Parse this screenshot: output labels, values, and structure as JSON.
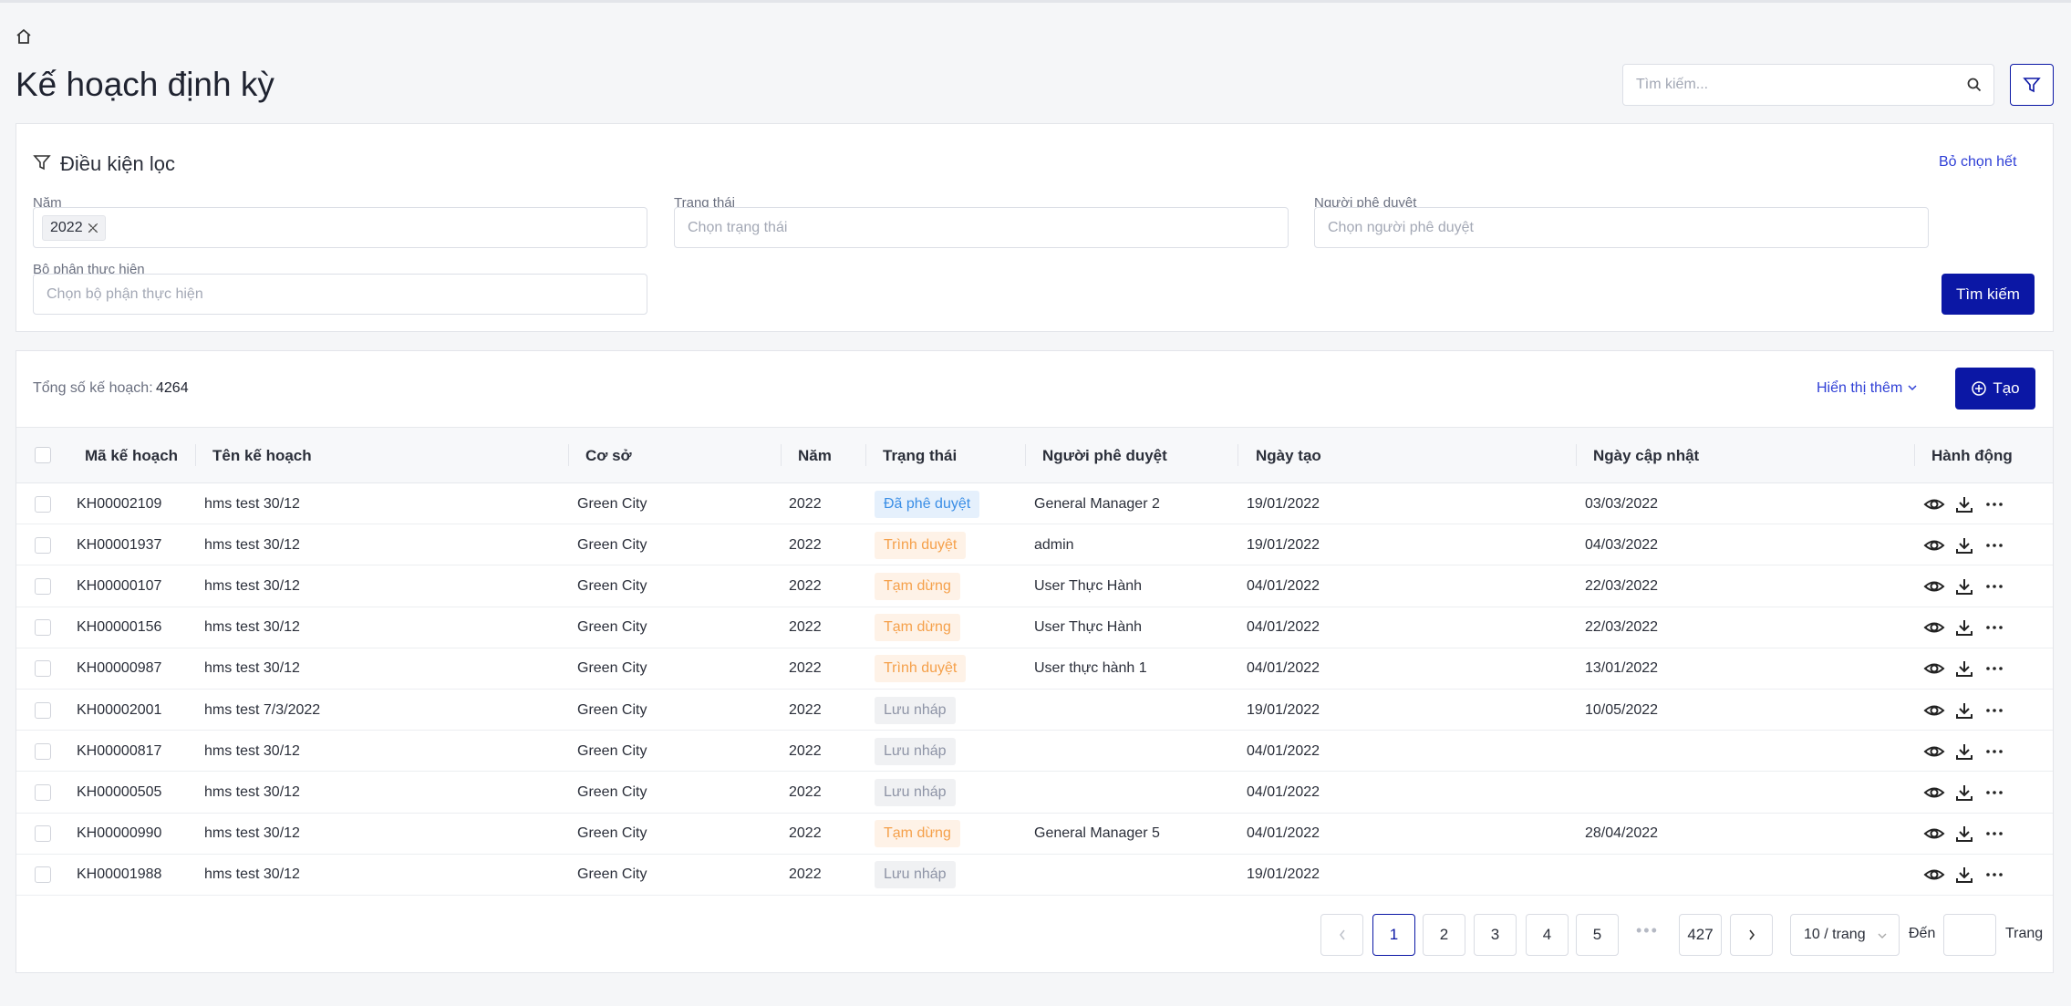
{
  "header": {
    "title": "Kế hoạch định kỳ",
    "search_placeholder": "Tìm kiếm..."
  },
  "filter": {
    "title": "Điều kiện lọc",
    "clear": "Bỏ chọn hết",
    "fields": [
      {
        "label": "Năm",
        "tags": [
          "2022"
        ]
      },
      {
        "label": "Trạng thái",
        "placeholder": "Chọn trạng thái"
      },
      {
        "label": "Người phê duyệt",
        "placeholder": "Chọn người phê duyệt"
      },
      {
        "label": "Bộ phận thực hiện",
        "placeholder": "Chọn bộ phận thực hiện"
      }
    ],
    "submit": "Tìm kiếm"
  },
  "summary": {
    "label": "Tổng số kế hoạch:",
    "total": 4264,
    "more": "Hiển thị thêm",
    "create": "Tạo"
  },
  "table": {
    "columns": [
      "Mã kế hoạch",
      "Tên kế hoạch",
      "Cơ sở",
      "Năm",
      "Trạng thái",
      "Người phê duyệt",
      "Ngày tạo",
      "Ngày cập nhật",
      "Hành động"
    ],
    "rows": [
      [
        "KH00002109",
        "hms test 30/12",
        "Green City",
        "2022",
        {
          "label": "Đã phê duyệt",
          "color": "#3a8ee6"
        },
        "General Manager 2",
        "19/01/2022",
        "03/03/2022"
      ],
      [
        "KH00001937",
        "hms test 30/12",
        "Green City",
        "2022",
        {
          "label": "Trình duyệt",
          "color": "#f5a04a"
        },
        "admin",
        "19/01/2022",
        "04/03/2022"
      ],
      [
        "KH00000107",
        "hms test 30/12",
        "Green City",
        "2022",
        {
          "label": "Tạm dừng",
          "color": "#f5a04a"
        },
        "User Thực Hành",
        "04/01/2022",
        "22/03/2022"
      ],
      [
        "KH00000156",
        "hms test 30/12",
        "Green City",
        "2022",
        {
          "label": "Tạm dừng",
          "color": "#f5a04a"
        },
        "User Thực Hành",
        "04/01/2022",
        "22/03/2022"
      ],
      [
        "KH00000987",
        "hms test 30/12",
        "Green City",
        "2022",
        {
          "label": "Trình duyệt",
          "color": "#f5a04a"
        },
        "User thực hành 1",
        "04/01/2022",
        "13/01/2022"
      ],
      [
        "KH00002001",
        "hms test 7/3/2022",
        "Green City",
        "2022",
        {
          "label": "Lưu nháp",
          "color": "#8e94a6"
        },
        null,
        "19/01/2022",
        "10/05/2022"
      ],
      [
        "KH00000817",
        "hms test 30/12",
        "Green City",
        "2022",
        {
          "label": "Lưu nháp",
          "color": "#8e94a6"
        },
        null,
        "04/01/2022",
        null
      ],
      [
        "KH00000505",
        "hms test 30/12",
        "Green City",
        "2022",
        {
          "label": "Lưu nháp",
          "color": "#8e94a6"
        },
        null,
        "04/01/2022",
        null
      ],
      [
        "KH00000990",
        "hms test 30/12",
        "Green City",
        "2022",
        {
          "label": "Tạm dừng",
          "color": "#f5a04a"
        },
        "General Manager 5",
        "04/01/2022",
        "28/04/2022"
      ],
      [
        "KH00001988",
        "hms test 30/12",
        "Green City",
        "2022",
        {
          "label": "Lưu nháp",
          "color": "#8e94a6"
        },
        null,
        "19/01/2022",
        null
      ]
    ]
  },
  "pagination": {
    "pages": [
      1,
      2,
      3,
      4,
      5
    ],
    "last": 427,
    "current": 1,
    "page_size": "10 / trang",
    "goto": "Đến",
    "suffix": "Trang"
  }
}
